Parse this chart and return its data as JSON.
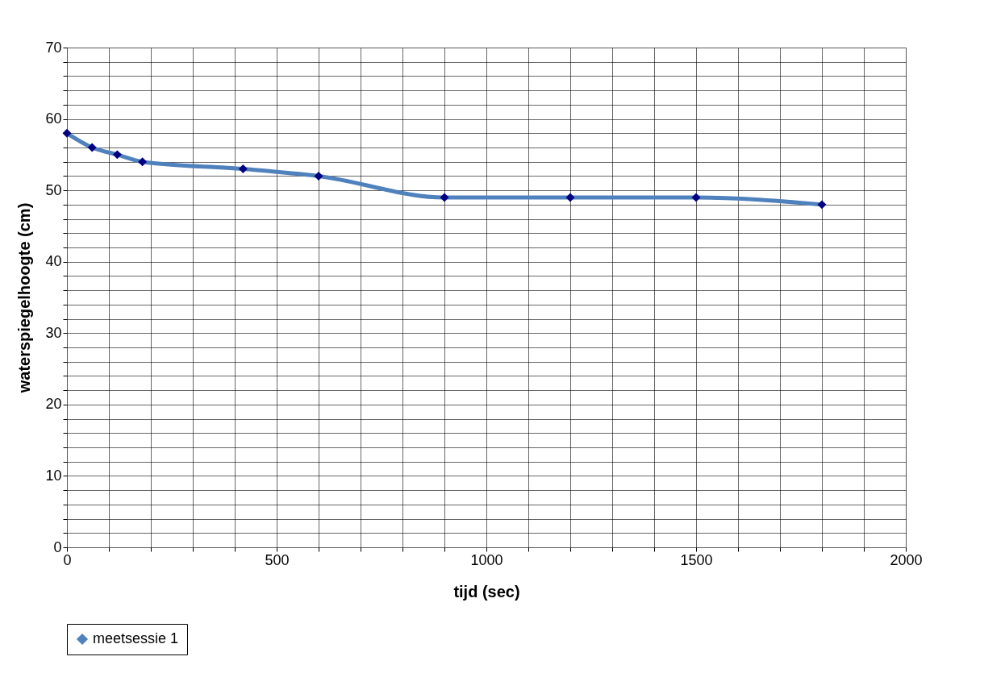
{
  "chart_data": {
    "type": "line",
    "xlabel": "tijd (sec)",
    "ylabel": "waterspiegelhoogte (cm)",
    "x": [
      0,
      60,
      120,
      180,
      420,
      600,
      900,
      1200,
      1500,
      1800
    ],
    "series": [
      {
        "name": "meetsessie 1",
        "color": "#4f81bd",
        "values": [
          58,
          56,
          55,
          54,
          53,
          52,
          49,
          49,
          49,
          48
        ]
      }
    ],
    "xlim": [
      0,
      2000
    ],
    "xticks": [
      0,
      {
        "value": 100,
        "label": null
      },
      {
        "value": 200,
        "label": null
      },
      {
        "value": 300,
        "label": null
      },
      {
        "value": 400,
        "label": null
      },
      500,
      {
        "value": 600,
        "label": null
      },
      {
        "value": 700,
        "label": null
      },
      {
        "value": 800,
        "label": null
      },
      {
        "value": 900,
        "label": null
      },
      1000,
      {
        "value": 1100,
        "label": null
      },
      {
        "value": 1200,
        "label": null
      },
      {
        "value": 1300,
        "label": null
      },
      {
        "value": 1400,
        "label": null
      },
      1500,
      {
        "value": 1600,
        "label": null
      },
      {
        "value": 1700,
        "label": null
      },
      {
        "value": 1800,
        "label": null
      },
      {
        "value": 1900,
        "label": null
      },
      2000
    ],
    "ylim": [
      0,
      70
    ],
    "yticks": [
      0,
      {
        "value": 2,
        "label": null
      },
      {
        "value": 4,
        "label": null
      },
      {
        "value": 6,
        "label": null
      },
      {
        "value": 8,
        "label": null
      },
      10,
      {
        "value": 12,
        "label": null
      },
      {
        "value": 14,
        "label": null
      },
      {
        "value": 16,
        "label": null
      },
      {
        "value": 18,
        "label": null
      },
      20,
      {
        "value": 22,
        "label": null
      },
      {
        "value": 24,
        "label": null
      },
      {
        "value": 26,
        "label": null
      },
      {
        "value": 28,
        "label": null
      },
      30,
      {
        "value": 32,
        "label": null
      },
      {
        "value": 34,
        "label": null
      },
      {
        "value": 36,
        "label": null
      },
      {
        "value": 38,
        "label": null
      },
      40,
      {
        "value": 42,
        "label": null
      },
      {
        "value": 44,
        "label": null
      },
      {
        "value": 46,
        "label": null
      },
      {
        "value": 48,
        "label": null
      },
      50,
      {
        "value": 52,
        "label": null
      },
      {
        "value": 54,
        "label": null
      },
      {
        "value": 56,
        "label": null
      },
      {
        "value": 58,
        "label": null
      },
      60,
      {
        "value": 62,
        "label": null
      },
      {
        "value": 64,
        "label": null
      },
      {
        "value": 66,
        "label": null
      },
      {
        "value": 68,
        "label": null
      },
      70
    ],
    "grid": true,
    "legend": "bottom",
    "marker": "diamond",
    "line_style": "solid"
  }
}
